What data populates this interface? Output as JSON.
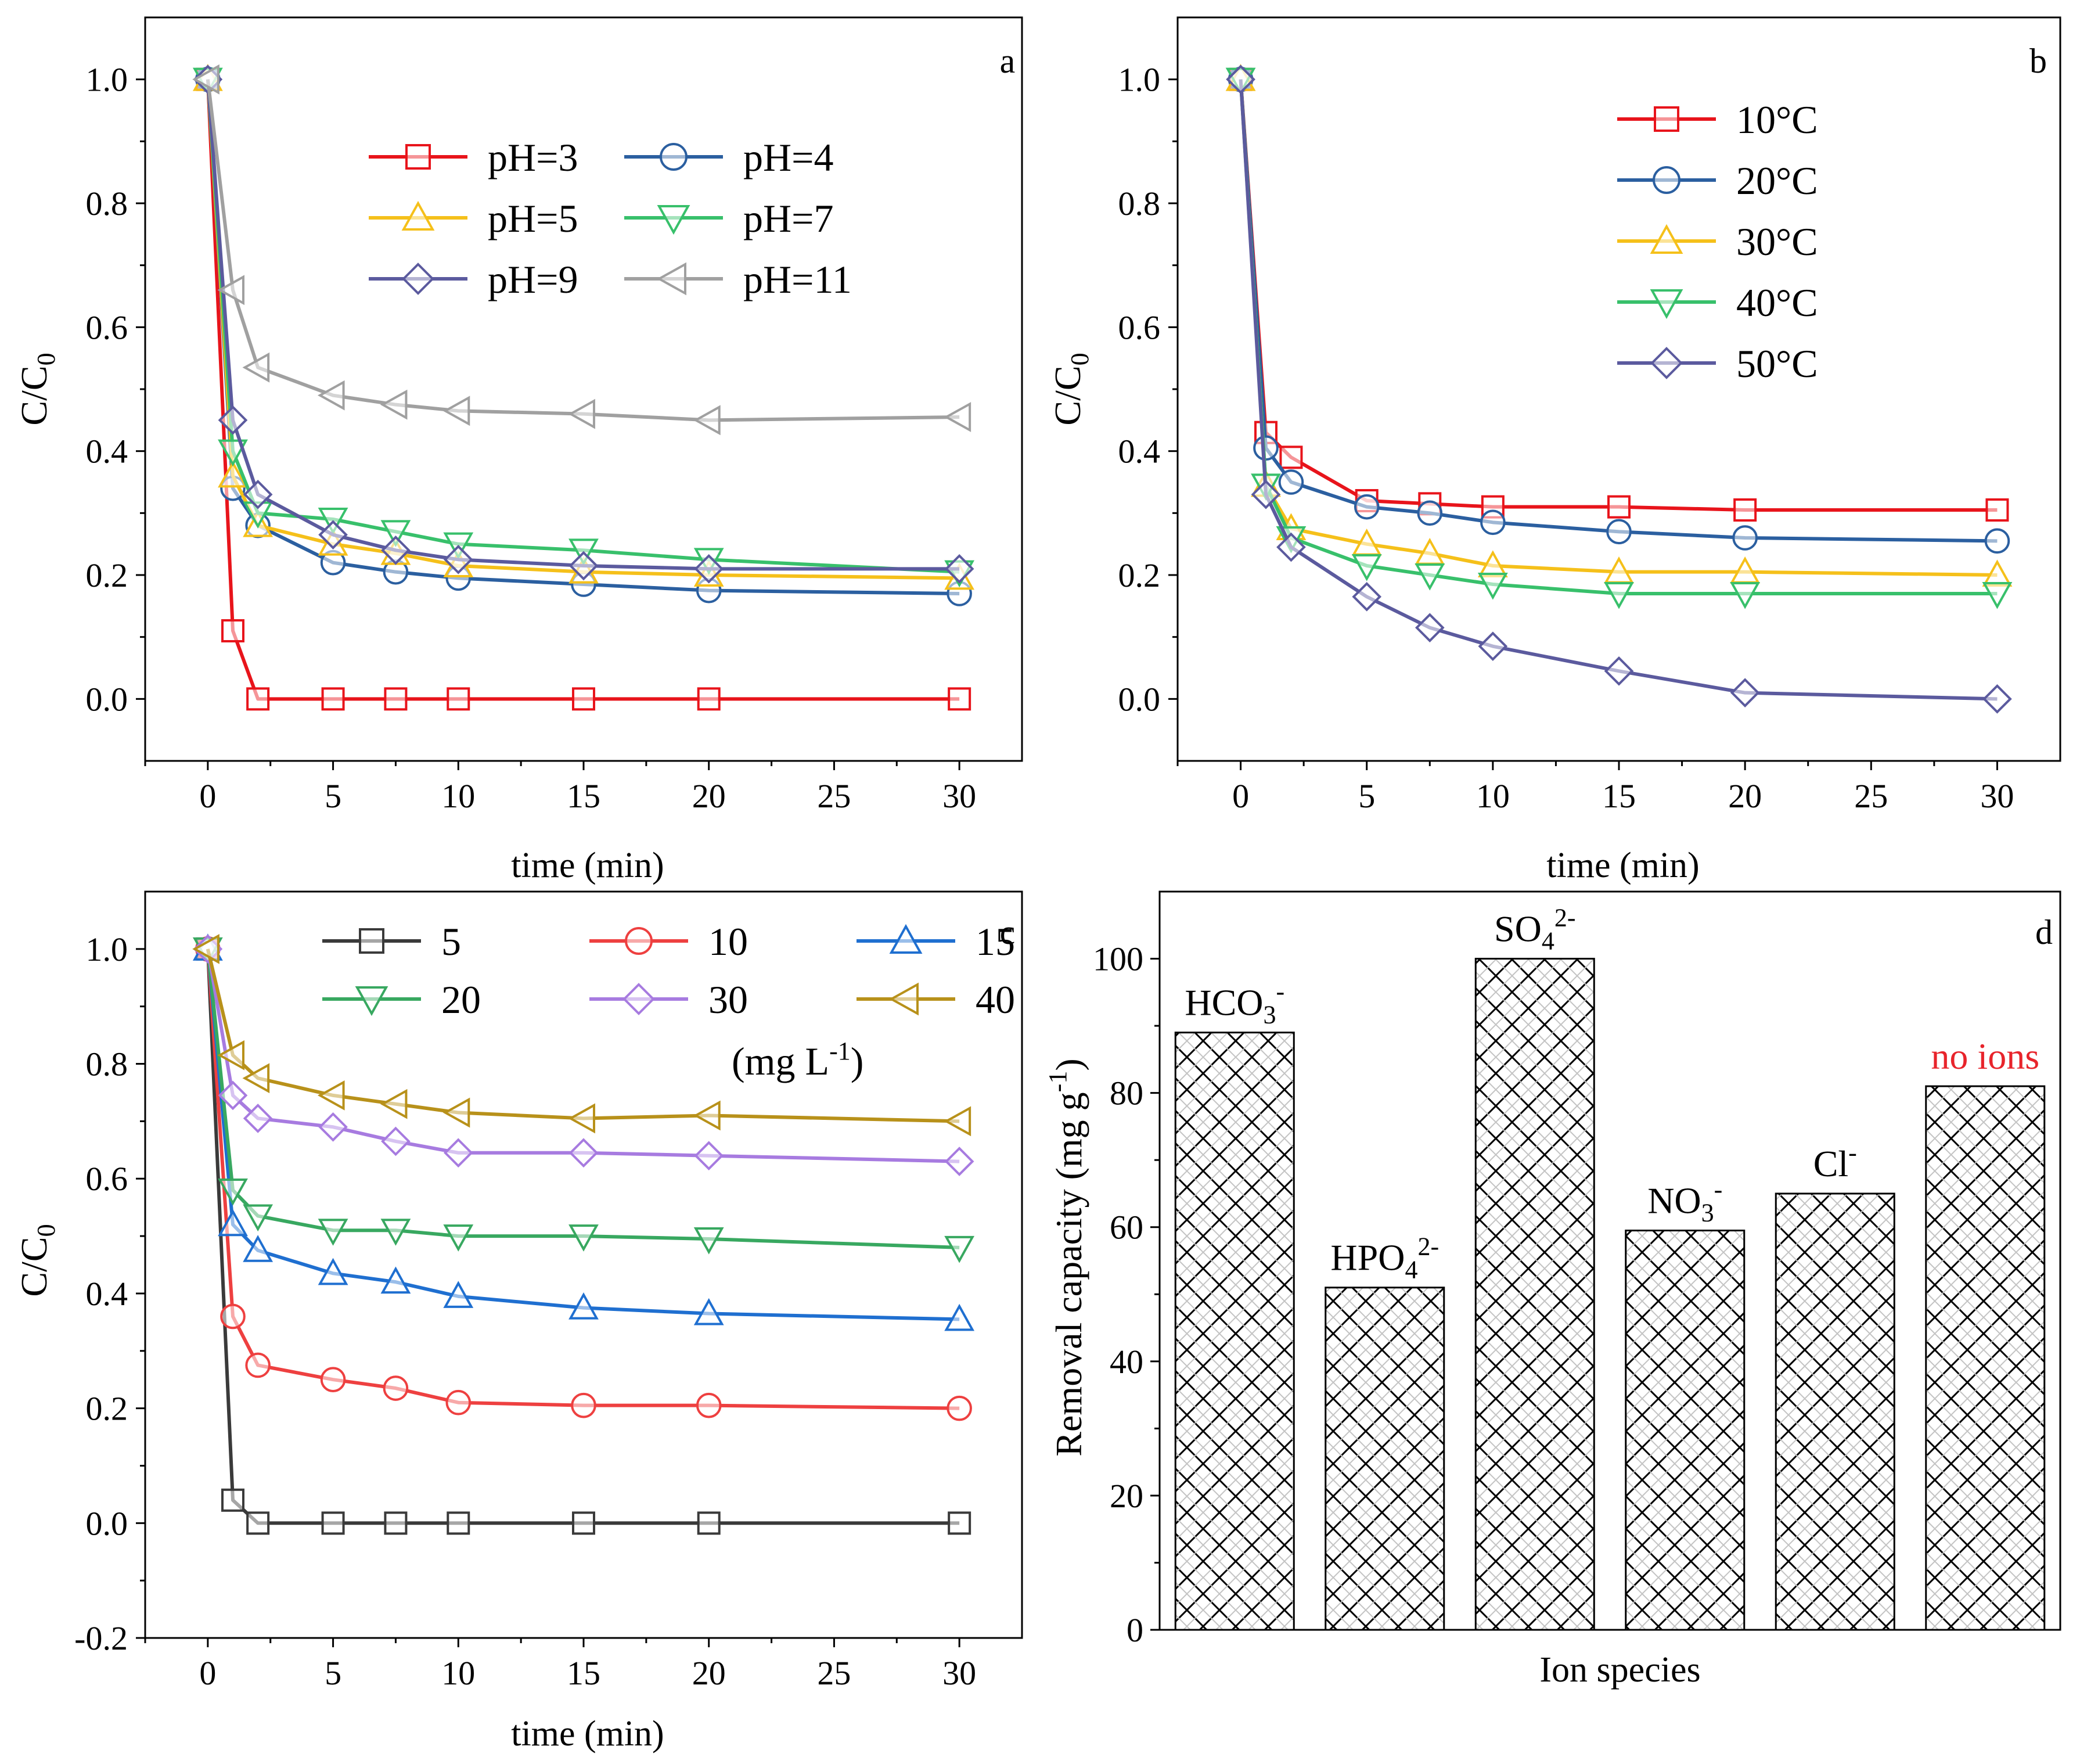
{
  "chart_data": [
    {
      "panel_label": "a",
      "type": "line",
      "xlabel": "time (min)",
      "ylabel": "C/C",
      "ylabel_sub": "0",
      "xlim": [
        -2.5,
        32.5
      ],
      "ylim": [
        -0.1,
        1.1
      ],
      "xticks": [
        0,
        5,
        10,
        15,
        20,
        25,
        30
      ],
      "xtick_labels": [
        "0",
        "5",
        "10",
        "15",
        "20",
        "25",
        "30"
      ],
      "yticks": [
        0.0,
        0.2,
        0.4,
        0.6,
        0.8,
        1.0
      ],
      "ytick_labels": [
        "0.0",
        "0.2",
        "0.4",
        "0.6",
        "0.8",
        "1.0"
      ],
      "legend": {
        "placement": "top-center",
        "columns": 2
      },
      "series": [
        {
          "name": "pH=3",
          "color": "#e8141b",
          "marker": "square",
          "x": [
            0,
            1,
            2,
            5,
            7.5,
            10,
            15,
            20,
            30
          ],
          "y": [
            1.0,
            0.11,
            0.0,
            0.0,
            0.0,
            0.0,
            0.0,
            0.0,
            0.0
          ]
        },
        {
          "name": "pH=4",
          "color": "#2b5fa0",
          "marker": "circle",
          "x": [
            0,
            1,
            2,
            5,
            7.5,
            10,
            15,
            20,
            30
          ],
          "y": [
            1.0,
            0.34,
            0.28,
            0.22,
            0.205,
            0.195,
            0.185,
            0.175,
            0.17
          ]
        },
        {
          "name": "pH=5",
          "color": "#f5c01a",
          "marker": "triangle-up",
          "x": [
            0,
            1,
            2,
            5,
            7.5,
            10,
            15,
            20,
            30
          ],
          "y": [
            1.0,
            0.36,
            0.28,
            0.25,
            0.235,
            0.215,
            0.205,
            0.2,
            0.195
          ]
        },
        {
          "name": "pH=7",
          "color": "#38c06b",
          "marker": "triangle-down",
          "x": [
            0,
            1,
            2,
            5,
            7.5,
            10,
            15,
            20,
            30
          ],
          "y": [
            1.0,
            0.4,
            0.3,
            0.29,
            0.27,
            0.25,
            0.24,
            0.225,
            0.205
          ]
        },
        {
          "name": "pH=9",
          "color": "#5b5a9e",
          "marker": "diamond",
          "x": [
            0,
            1,
            2,
            5,
            7.5,
            10,
            15,
            20,
            30
          ],
          "y": [
            1.0,
            0.45,
            0.33,
            0.265,
            0.24,
            0.225,
            0.215,
            0.21,
            0.21
          ]
        },
        {
          "name": "pH=11",
          "color": "#a0a0a0",
          "marker": "triangle-left",
          "x": [
            0,
            1,
            2,
            5,
            7.5,
            10,
            15,
            20,
            30
          ],
          "y": [
            1.0,
            0.66,
            0.535,
            0.49,
            0.475,
            0.465,
            0.46,
            0.45,
            0.455
          ]
        }
      ]
    },
    {
      "panel_label": "b",
      "type": "line",
      "xlabel": "time (min)",
      "ylabel": "C/C",
      "ylabel_sub": "0",
      "xlim": [
        -2.5,
        32.5
      ],
      "ylim": [
        -0.1,
        1.1
      ],
      "xticks": [
        0,
        5,
        10,
        15,
        20,
        25,
        30
      ],
      "xtick_labels": [
        "0",
        "5",
        "10",
        "15",
        "20",
        "25",
        "30"
      ],
      "yticks": [
        0.0,
        0.2,
        0.4,
        0.6,
        0.8,
        1.0
      ],
      "ytick_labels": [
        "0.0",
        "0.2",
        "0.4",
        "0.6",
        "0.8",
        "1.0"
      ],
      "legend": {
        "placement": "top-center",
        "columns": 1
      },
      "series": [
        {
          "name": "10°C",
          "color": "#e8141b",
          "marker": "square",
          "x": [
            0,
            1,
            2,
            5,
            7.5,
            10,
            15,
            20,
            30
          ],
          "y": [
            1.0,
            0.43,
            0.39,
            0.32,
            0.315,
            0.31,
            0.31,
            0.305,
            0.305
          ]
        },
        {
          "name": "20°C",
          "color": "#2b5fa0",
          "marker": "circle",
          "x": [
            0,
            1,
            2,
            5,
            7.5,
            10,
            15,
            20,
            30
          ],
          "y": [
            1.0,
            0.405,
            0.35,
            0.31,
            0.3,
            0.285,
            0.27,
            0.26,
            0.255
          ]
        },
        {
          "name": "30°C",
          "color": "#f5c01a",
          "marker": "triangle-up",
          "x": [
            0,
            1,
            2,
            5,
            7.5,
            10,
            15,
            20,
            30
          ],
          "y": [
            1.0,
            0.345,
            0.275,
            0.25,
            0.235,
            0.215,
            0.205,
            0.205,
            0.2
          ]
        },
        {
          "name": "40°C",
          "color": "#38c06b",
          "marker": "triangle-down",
          "x": [
            0,
            1,
            2,
            5,
            7.5,
            10,
            15,
            20,
            30
          ],
          "y": [
            1.0,
            0.345,
            0.26,
            0.215,
            0.2,
            0.185,
            0.17,
            0.17,
            0.17
          ]
        },
        {
          "name": "50°C",
          "color": "#5b5a9e",
          "marker": "diamond",
          "x": [
            0,
            1,
            2,
            5,
            7.5,
            10,
            15,
            20,
            30
          ],
          "y": [
            1.0,
            0.33,
            0.245,
            0.165,
            0.115,
            0.085,
            0.045,
            0.01,
            0.0
          ]
        }
      ]
    },
    {
      "panel_label": "c",
      "type": "line",
      "xlabel": "time (min)",
      "ylabel": "C/C",
      "ylabel_sub": "0",
      "xlim": [
        -2.5,
        32.5
      ],
      "ylim": [
        -0.2,
        1.1
      ],
      "xticks": [
        0,
        5,
        10,
        15,
        20,
        25,
        30
      ],
      "xtick_labels": [
        "0",
        "5",
        "10",
        "15",
        "20",
        "25",
        "30"
      ],
      "yticks": [
        -0.2,
        0.0,
        0.2,
        0.4,
        0.6,
        0.8,
        1.0
      ],
      "ytick_labels": [
        "-0.2",
        "0.0",
        "0.2",
        "0.4",
        "0.6",
        "0.8",
        "1.0"
      ],
      "legend": {
        "placement": "top-center",
        "columns": 3
      },
      "legend_unit": "(mg L",
      "legend_unit_sup": "-1",
      "legend_unit_close": ")",
      "series": [
        {
          "name": "5",
          "color": "#3a3a3a",
          "marker": "square",
          "x": [
            0,
            1,
            2,
            5,
            7.5,
            10,
            15,
            20,
            30
          ],
          "y": [
            1.0,
            0.04,
            0.0,
            0.0,
            0.0,
            0.0,
            0.0,
            0.0,
            0.0
          ]
        },
        {
          "name": "10",
          "color": "#ee4040",
          "marker": "circle",
          "x": [
            0,
            1,
            2,
            5,
            7.5,
            10,
            15,
            20,
            30
          ],
          "y": [
            1.0,
            0.36,
            0.275,
            0.25,
            0.235,
            0.21,
            0.205,
            0.205,
            0.2
          ]
        },
        {
          "name": "15",
          "color": "#1f6fd0",
          "marker": "triangle-up",
          "x": [
            0,
            1,
            2,
            5,
            7.5,
            10,
            15,
            20,
            30
          ],
          "y": [
            1.0,
            0.52,
            0.475,
            0.435,
            0.42,
            0.395,
            0.375,
            0.365,
            0.355
          ]
        },
        {
          "name": "20",
          "color": "#38a860",
          "marker": "triangle-down",
          "x": [
            0,
            1,
            2,
            5,
            7.5,
            10,
            15,
            20,
            30
          ],
          "y": [
            1.0,
            0.58,
            0.535,
            0.51,
            0.51,
            0.5,
            0.5,
            0.495,
            0.48
          ]
        },
        {
          "name": "30",
          "color": "#a77be0",
          "marker": "diamond",
          "x": [
            0,
            1,
            2,
            5,
            7.5,
            10,
            15,
            20,
            30
          ],
          "y": [
            1.0,
            0.745,
            0.705,
            0.69,
            0.665,
            0.645,
            0.645,
            0.64,
            0.63
          ]
        },
        {
          "name": "40",
          "color": "#b8911a",
          "marker": "triangle-left",
          "x": [
            0,
            1,
            2,
            5,
            7.5,
            10,
            15,
            20,
            30
          ],
          "y": [
            1.0,
            0.815,
            0.775,
            0.745,
            0.73,
            0.715,
            0.705,
            0.71,
            0.7
          ]
        }
      ]
    },
    {
      "panel_label": "d",
      "type": "bar",
      "xlabel": "Ion species",
      "ylabel": "Removal capacity (mg g",
      "ylabel_sup": "-1",
      "ylabel_close": ")",
      "ylim": [
        0,
        110
      ],
      "yticks": [
        0,
        20,
        40,
        60,
        80,
        100
      ],
      "ytick_labels": [
        "0",
        "20",
        "40",
        "60",
        "80",
        "100"
      ],
      "categories": [
        {
          "base": "HCO",
          "sub": "3",
          "sup": "-"
        },
        {
          "base": "HPO",
          "sub": "4",
          "sup": "2-"
        },
        {
          "base": "SO",
          "sub": "4",
          "sup": "2-"
        },
        {
          "base": "NO",
          "sub": "3",
          "sup": "-"
        },
        {
          "base": "Cl",
          "sub": "",
          "sup": "-"
        },
        {
          "base": "no ions",
          "sub": "",
          "sup": ""
        }
      ],
      "values": [
        89,
        51,
        100,
        59.5,
        65,
        81
      ],
      "label_colors": [
        "#000000",
        "#000000",
        "#000000",
        "#000000",
        "#000000",
        "#e8242b"
      ],
      "fill": "crosshatch"
    }
  ]
}
